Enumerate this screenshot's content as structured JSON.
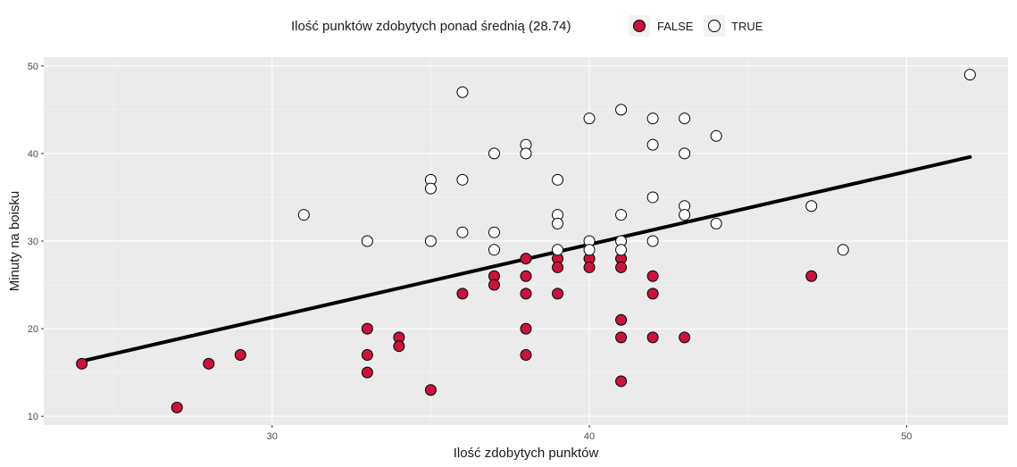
{
  "chart_data": {
    "type": "scatter",
    "xlabel": "Ilość zdobytych punktów",
    "ylabel": "Minuty na boisku",
    "xlim": [
      22.8,
      53.2
    ],
    "ylim": [
      9,
      51
    ],
    "xticks": [
      30,
      40,
      50
    ],
    "yticks": [
      10,
      20,
      30,
      40,
      50
    ],
    "grid": true,
    "legend": {
      "title": "Ilość punktów zdobytych ponad średnią (28.74)",
      "position": "top",
      "entries": [
        {
          "label": "FALSE",
          "color": "#c8143c"
        },
        {
          "label": "TRUE",
          "color": "#ffffff"
        }
      ]
    },
    "series": [
      {
        "name": "FALSE",
        "color": "#c8143c",
        "points": [
          [
            24,
            16
          ],
          [
            27,
            11
          ],
          [
            28,
            16
          ],
          [
            29,
            17
          ],
          [
            33,
            20
          ],
          [
            33,
            17
          ],
          [
            33,
            15
          ],
          [
            34,
            19
          ],
          [
            34,
            18
          ],
          [
            35,
            13
          ],
          [
            36,
            24
          ],
          [
            37,
            26
          ],
          [
            37,
            25
          ],
          [
            38,
            28
          ],
          [
            38,
            26
          ],
          [
            38,
            24
          ],
          [
            38,
            20
          ],
          [
            38,
            17
          ],
          [
            39,
            28
          ],
          [
            39,
            27
          ],
          [
            39,
            24
          ],
          [
            40,
            28
          ],
          [
            40,
            27
          ],
          [
            41,
            28
          ],
          [
            41,
            27
          ],
          [
            41,
            21
          ],
          [
            41,
            19
          ],
          [
            41,
            14
          ],
          [
            42,
            26
          ],
          [
            42,
            24
          ],
          [
            42,
            19
          ],
          [
            43,
            19
          ],
          [
            47,
            26
          ]
        ]
      },
      {
        "name": "TRUE",
        "color": "#ffffff",
        "points": [
          [
            31,
            33
          ],
          [
            33,
            30
          ],
          [
            35,
            37
          ],
          [
            35,
            36
          ],
          [
            35,
            30
          ],
          [
            36,
            47
          ],
          [
            36,
            37
          ],
          [
            36,
            31
          ],
          [
            37,
            40
          ],
          [
            37,
            31
          ],
          [
            37,
            29
          ],
          [
            38,
            41
          ],
          [
            38,
            40
          ],
          [
            39,
            37
          ],
          [
            39,
            33
          ],
          [
            39,
            32
          ],
          [
            39,
            29
          ],
          [
            40,
            44
          ],
          [
            40,
            30
          ],
          [
            40,
            29
          ],
          [
            41,
            45
          ],
          [
            41,
            33
          ],
          [
            41,
            30
          ],
          [
            41,
            29
          ],
          [
            42,
            44
          ],
          [
            42,
            41
          ],
          [
            42,
            35
          ],
          [
            42,
            30
          ],
          [
            43,
            44
          ],
          [
            43,
            40
          ],
          [
            43,
            34
          ],
          [
            43,
            33
          ],
          [
            44,
            42
          ],
          [
            44,
            32
          ],
          [
            47,
            34
          ],
          [
            48,
            29
          ],
          [
            52,
            49
          ]
        ]
      }
    ],
    "trend_line": {
      "x": [
        24,
        52
      ],
      "y": [
        16.3,
        39.6
      ],
      "color": "#000000"
    }
  }
}
